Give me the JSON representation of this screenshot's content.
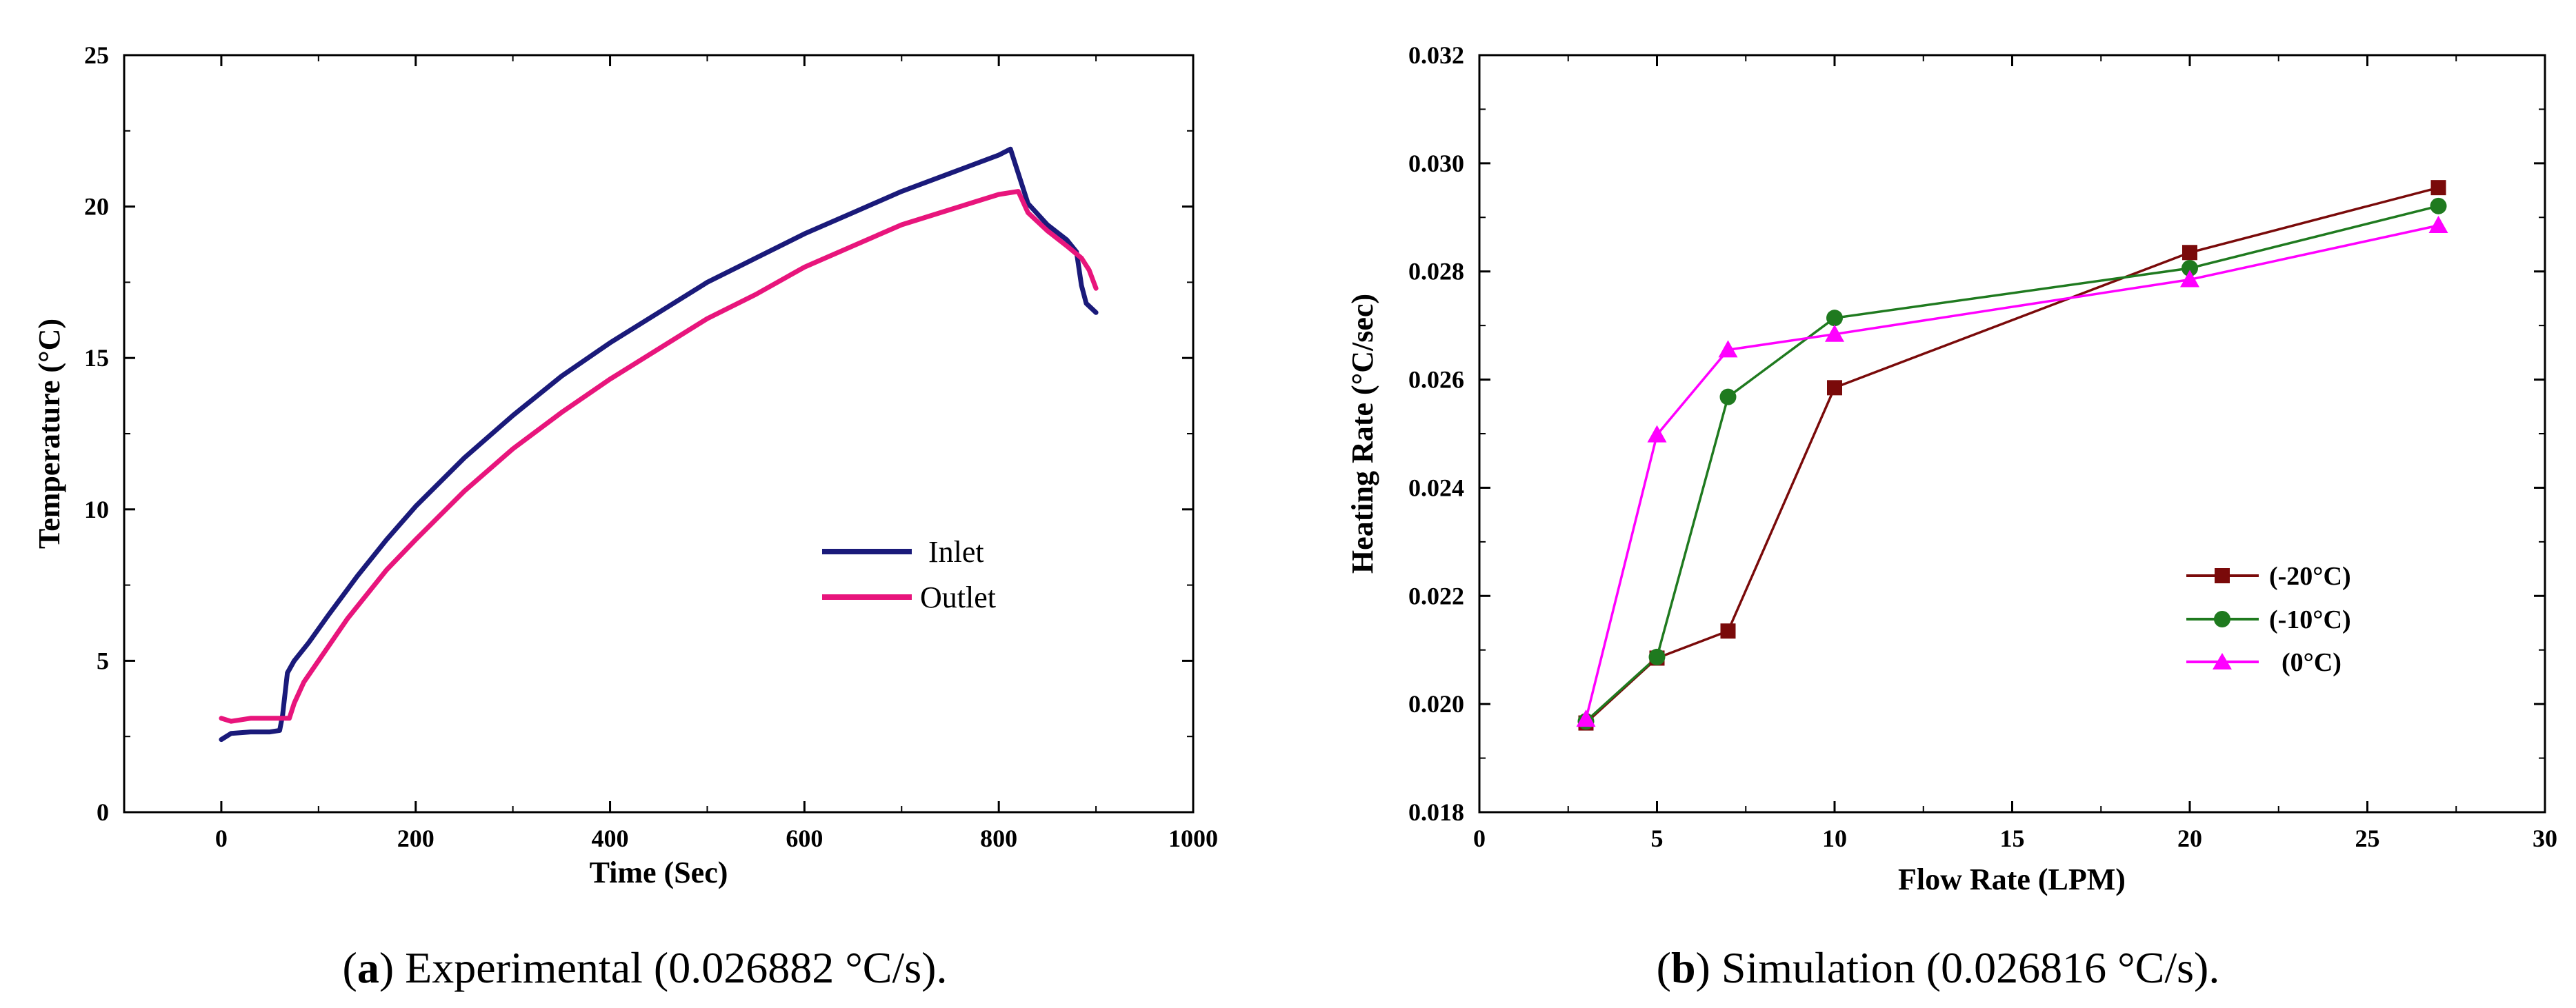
{
  "chart_data": [
    {
      "id": "a",
      "type": "line",
      "xlabel": "Time (Sec)",
      "ylabel": "Temperature (°C)",
      "xlim": [
        -100,
        1000
      ],
      "ylim": [
        0,
        25
      ],
      "xticks": [
        0,
        200,
        400,
        600,
        800,
        1000
      ],
      "yticks": [
        0,
        5,
        10,
        15,
        20,
        25
      ],
      "legend_position": "right-middle",
      "series": [
        {
          "name": "Inlet",
          "color": "#1a1a7a",
          "x": [
            0,
            10,
            30,
            50,
            60,
            63,
            68,
            75,
            90,
            110,
            140,
            170,
            200,
            250,
            300,
            350,
            400,
            450,
            500,
            550,
            600,
            650,
            700,
            750,
            800,
            812,
            815,
            830,
            850,
            870,
            880,
            885,
            890,
            900
          ],
          "y": [
            2.4,
            2.6,
            2.65,
            2.65,
            2.7,
            3.2,
            4.6,
            5.0,
            5.6,
            6.5,
            7.8,
            9.0,
            10.1,
            11.7,
            13.1,
            14.4,
            15.5,
            16.5,
            17.5,
            18.3,
            19.1,
            19.8,
            20.5,
            21.1,
            21.7,
            21.9,
            21.6,
            20.1,
            19.4,
            18.9,
            18.5,
            17.4,
            16.8,
            16.5
          ]
        },
        {
          "name": "Outlet",
          "color": "#e8157c",
          "x": [
            0,
            10,
            30,
            50,
            70,
            75,
            85,
            100,
            130,
            170,
            200,
            250,
            300,
            350,
            400,
            450,
            500,
            550,
            600,
            650,
            700,
            750,
            800,
            820,
            830,
            850,
            870,
            885,
            893,
            900
          ],
          "y": [
            3.1,
            3.0,
            3.1,
            3.1,
            3.1,
            3.6,
            4.3,
            5.0,
            6.4,
            8.0,
            9.0,
            10.6,
            12.0,
            13.2,
            14.3,
            15.3,
            16.3,
            17.1,
            18.0,
            18.7,
            19.4,
            19.9,
            20.4,
            20.5,
            19.8,
            19.2,
            18.7,
            18.3,
            17.9,
            17.3
          ]
        }
      ],
      "caption": {
        "letter": "a",
        "text": ") Experimental (0.026882 °C/s)."
      }
    },
    {
      "id": "b",
      "type": "line",
      "xlabel": "Flow Rate (LPM)",
      "ylabel": "Heating Rate (°C/sec)",
      "xlim": [
        0,
        30
      ],
      "ylim": [
        0.018,
        0.032
      ],
      "xticks": [
        0,
        5,
        10,
        15,
        20,
        25,
        30
      ],
      "yticks": [
        "0.018",
        "0.020",
        "0.022",
        "0.024",
        "0.026",
        "0.028",
        "0.030",
        "0.032"
      ],
      "legend_position": "right-middle",
      "categories": [
        3,
        5,
        7,
        10,
        20,
        27
      ],
      "series": [
        {
          "name": "(-20°C)",
          "color": "#7a0a0a",
          "marker": "square",
          "x": [
            3,
            5,
            7,
            10,
            20,
            27
          ],
          "y": [
            0.01965,
            0.02085,
            0.02135,
            0.02585,
            0.02835,
            0.02955
          ]
        },
        {
          "name": "(-10°C)",
          "color": "#1f7a1f",
          "marker": "circle",
          "x": [
            3,
            5,
            7,
            10,
            20,
            27
          ],
          "y": [
            0.01968,
            0.02087,
            0.02568,
            0.02714,
            0.02806,
            0.02921
          ]
        },
        {
          "name": "(0°C)",
          "color": "#ff00ff",
          "marker": "triangle",
          "x": [
            3,
            5,
            7,
            10,
            20,
            27
          ],
          "y": [
            0.01972,
            0.02498,
            0.02655,
            0.02684,
            0.02785,
            0.02885
          ]
        }
      ],
      "caption": {
        "letter": "b",
        "text": ") Simulation (0.026816 °C/s)."
      }
    }
  ]
}
